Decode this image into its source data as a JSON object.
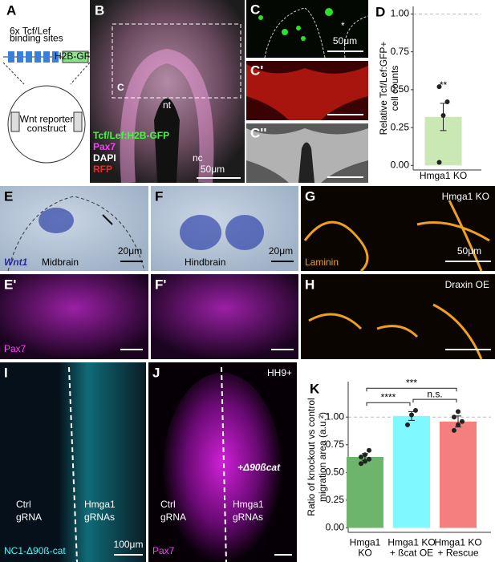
{
  "panels": {
    "A": {
      "label": "A",
      "sites": "6x Tcf/Lef\nbinding sites",
      "gene": "H2B-GFP",
      "construct": "Wnt reporter\nconstruct"
    },
    "B": {
      "label": "B",
      "box": "C",
      "nt": "nt",
      "nc": "nc",
      "legend": [
        "Tcf/Lef:H2B-GFP",
        "Pax7",
        "DAPI",
        "RFP"
      ],
      "scale": "50μm"
    },
    "C": {
      "label": "C",
      "star": "*",
      "scale": "50μm"
    },
    "C1": {
      "label": "C'"
    },
    "C2": {
      "label": "C''"
    },
    "E": {
      "label": "E",
      "gene": "Wnt1",
      "region": "Midbrain",
      "scale": "20μm"
    },
    "F": {
      "label": "F",
      "region": "Hindbrain",
      "scale": "20μm"
    },
    "G": {
      "label": "G",
      "condition": "Hmga1 KO",
      "stain": "Laminin",
      "scale": "50μm"
    },
    "E1": {
      "label": "E'",
      "stain": "Pax7"
    },
    "F1": {
      "label": "F'"
    },
    "H": {
      "label": "H",
      "condition": "Draxin OE"
    },
    "I": {
      "label": "I",
      "ctrl": "Ctrl\ngRNA",
      "ko": "Hmga1\ngRNAs",
      "stain": "NC1-Δ90ß-cat",
      "scale": "100μm"
    },
    "J": {
      "label": "J",
      "stage": "HH9+",
      "construct": "+Δ90ßcat",
      "ctrl": "Ctrl\ngRNA",
      "ko": "Hmga1\ngRNAs",
      "stain": "Pax7"
    },
    "K": {
      "label": "K"
    },
    "D": {
      "label": "D"
    }
  },
  "chart_data": [
    {
      "type": "bar",
      "ylabel": "Relative Tcf/Lef:GFP+\ncell counts",
      "categories": [
        "Hmga1 KO"
      ],
      "values": [
        0.32
      ],
      "errors": [
        0.09
      ],
      "points": [
        [
          0.02,
          0.33,
          0.42,
          0.52
        ]
      ],
      "annotations": [
        "**"
      ],
      "colors": [
        "#c9e8b4"
      ],
      "reference_line": 1,
      "ylim": [
        -0.03,
        1.05
      ],
      "yticks": [
        {
          "value": 0,
          "label": "0.00"
        },
        {
          "value": 0.25,
          "label": "0.25"
        },
        {
          "value": 0.5,
          "label": "0.50"
        },
        {
          "value": 0.75,
          "label": "0.75"
        },
        {
          "value": 1,
          "label": "1.00"
        }
      ]
    },
    {
      "type": "bar",
      "ylabel": "Ratio of knockout vs control\nmigration area (a.u.²)",
      "categories": [
        "Hmga1\nKO",
        "Hmga1 KO\n+ ßcat OE",
        "Hmga1 KO\n+ Rescue"
      ],
      "values": [
        0.64,
        1.01,
        0.96
      ],
      "errors": [
        0.03,
        0.04,
        0.05
      ],
      "points": [
        [
          0.58,
          0.6,
          0.62,
          0.64,
          0.66,
          0.7
        ],
        [
          0.93,
          1.02,
          1.06
        ],
        [
          0.88,
          0.93,
          0.96,
          1.0,
          1.05
        ]
      ],
      "colors": [
        "#6db56d",
        "#80f8ff",
        "#f47f7f"
      ],
      "reference_line": 1,
      "significance": [
        {
          "from": 0,
          "to": 1,
          "label": "****"
        },
        {
          "from": 1,
          "to": 2,
          "label": "n.s."
        },
        {
          "from": 0,
          "to": 2,
          "label": "***"
        }
      ],
      "ylim": [
        -0.04,
        1.32
      ],
      "yticks": [
        {
          "value": 0,
          "label": "0.00"
        },
        {
          "value": 0.25,
          "label": "0.25"
        },
        {
          "value": 0.5,
          "label": "0.50"
        },
        {
          "value": 0.75,
          "label": "0.75"
        },
        {
          "value": 1,
          "label": "1.00"
        }
      ]
    }
  ]
}
